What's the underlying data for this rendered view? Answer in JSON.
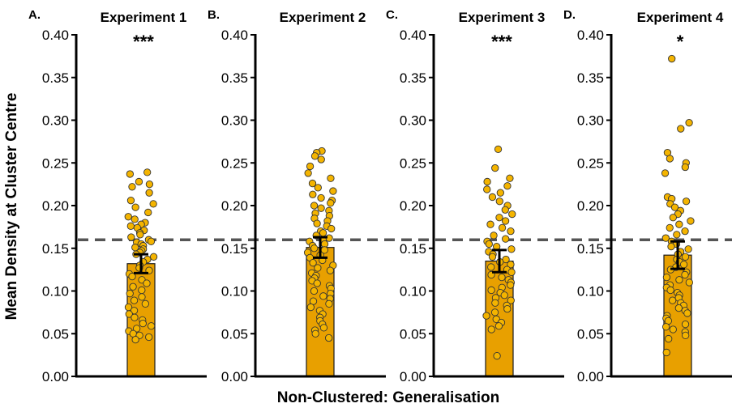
{
  "chart_data": {
    "type": "bar",
    "ylabel": "Mean Density at Cluster Centre",
    "xlabel": "Non-Clustered: Generalisation",
    "ylim": [
      0,
      0.4
    ],
    "yticks": [
      "0.00",
      "0.05",
      "0.10",
      "0.15",
      "0.20",
      "0.25",
      "0.30",
      "0.35",
      "0.40"
    ],
    "reference_line": 0.16,
    "colors": {
      "bar": "#E8A000",
      "point": "#F4B400",
      "point_edge": "#333333",
      "axis": "#000000",
      "reference_line": "#555555"
    },
    "panels": [
      {
        "letter": "A.",
        "title": "Experiment 1",
        "significance": "***",
        "mean": 0.132,
        "ci": [
          0.121,
          0.143
        ],
        "points": [
          0.239,
          0.237,
          0.228,
          0.225,
          0.222,
          0.215,
          0.206,
          0.202,
          0.198,
          0.192,
          0.187,
          0.184,
          0.18,
          0.178,
          0.176,
          0.174,
          0.171,
          0.168,
          0.166,
          0.163,
          0.16,
          0.158,
          0.157,
          0.155,
          0.153,
          0.151,
          0.149,
          0.147,
          0.145,
          0.143,
          0.14,
          0.137,
          0.134,
          0.13,
          0.127,
          0.124,
          0.12,
          0.117,
          0.113,
          0.109,
          0.105,
          0.101,
          0.097,
          0.093,
          0.089,
          0.085,
          0.081,
          0.077,
          0.073,
          0.069,
          0.066,
          0.062,
          0.059,
          0.056,
          0.053,
          0.05,
          0.048,
          0.046,
          0.043
        ]
      },
      {
        "letter": "B.",
        "title": "Experiment 2",
        "significance": "",
        "mean": 0.151,
        "ci": [
          0.139,
          0.163
        ],
        "points": [
          0.264,
          0.262,
          0.258,
          0.254,
          0.246,
          0.238,
          0.232,
          0.226,
          0.221,
          0.217,
          0.213,
          0.209,
          0.206,
          0.203,
          0.2,
          0.197,
          0.194,
          0.191,
          0.188,
          0.185,
          0.182,
          0.179,
          0.176,
          0.173,
          0.17,
          0.168,
          0.165,
          0.162,
          0.16,
          0.158,
          0.155,
          0.153,
          0.15,
          0.148,
          0.145,
          0.142,
          0.139,
          0.136,
          0.133,
          0.13,
          0.127,
          0.124,
          0.121,
          0.118,
          0.115,
          0.112,
          0.109,
          0.106,
          0.103,
          0.1,
          0.097,
          0.094,
          0.091,
          0.088,
          0.085,
          0.081,
          0.077,
          0.073,
          0.069,
          0.065,
          0.061,
          0.057,
          0.054,
          0.05,
          0.045
        ]
      },
      {
        "letter": "C.",
        "title": "Experiment 3",
        "significance": "***",
        "mean": 0.135,
        "ci": [
          0.122,
          0.148
        ],
        "points": [
          0.266,
          0.244,
          0.232,
          0.228,
          0.223,
          0.219,
          0.215,
          0.21,
          0.205,
          0.2,
          0.195,
          0.19,
          0.186,
          0.182,
          0.178,
          0.174,
          0.17,
          0.165,
          0.161,
          0.158,
          0.155,
          0.152,
          0.149,
          0.146,
          0.143,
          0.14,
          0.137,
          0.134,
          0.131,
          0.128,
          0.125,
          0.122,
          0.119,
          0.116,
          0.113,
          0.11,
          0.107,
          0.104,
          0.101,
          0.098,
          0.095,
          0.092,
          0.089,
          0.086,
          0.083,
          0.079,
          0.075,
          0.071,
          0.067,
          0.063,
          0.059,
          0.055,
          0.024
        ]
      },
      {
        "letter": "D.",
        "title": "Experiment 4",
        "significance": "*",
        "mean": 0.142,
        "ci": [
          0.126,
          0.158
        ],
        "points": [
          0.372,
          0.297,
          0.29,
          0.262,
          0.255,
          0.25,
          0.245,
          0.238,
          0.21,
          0.208,
          0.205,
          0.202,
          0.198,
          0.194,
          0.19,
          0.186,
          0.182,
          0.178,
          0.174,
          0.17,
          0.166,
          0.162,
          0.158,
          0.155,
          0.152,
          0.149,
          0.146,
          0.143,
          0.14,
          0.137,
          0.134,
          0.131,
          0.128,
          0.125,
          0.122,
          0.119,
          0.116,
          0.113,
          0.11,
          0.107,
          0.104,
          0.101,
          0.098,
          0.095,
          0.092,
          0.089,
          0.086,
          0.083,
          0.08,
          0.077,
          0.074,
          0.071,
          0.068,
          0.065,
          0.061,
          0.058,
          0.055,
          0.052,
          0.048,
          0.044,
          0.028
        ]
      }
    ]
  }
}
